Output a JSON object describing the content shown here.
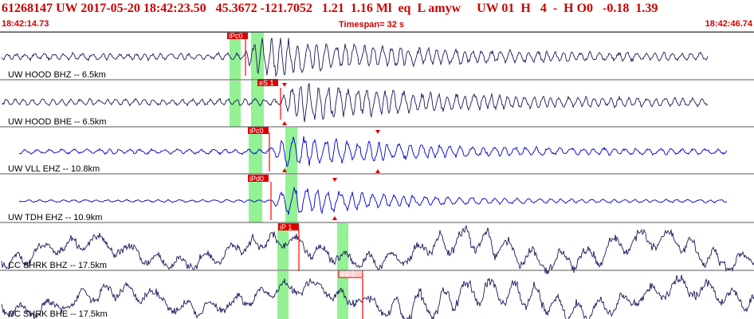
{
  "header": {
    "title": "61268147 UW 2017-05-20 18:42:23.50   45.3672 -121.7052   1.21  1.16 Ml  eq  L amyw     UW 01  H   4  -  H O0   -0.18  1.39",
    "start_time": "18:42:14.73",
    "timespan_label": "Timespan=  32 s",
    "end_time": "18:42:46.74"
  },
  "colors": {
    "header_text": "#cc0000",
    "trace_dark": "#1a1a5a",
    "trace_blue": "#0000cc",
    "pick_red": "#ff0000",
    "pick_marker": "#dd0000",
    "band_green": "#80f080"
  },
  "channels": [
    {
      "label": "UW HOOD BHZ -- 6.5km",
      "color": "dark",
      "seed": 11,
      "pick": {
        "text": "iPc0",
        "style": "filled"
      },
      "noise": 4,
      "onset": 305,
      "stop": 888,
      "burst_amp": 26,
      "decay": 170,
      "freq": 0.55
    },
    {
      "label": "UW HOOD BHE -- 6.5km",
      "color": "dark",
      "seed": 23,
      "pick": {
        "text": "eS 1",
        "style": "filled"
      },
      "noise": 4,
      "onset": 352,
      "stop": 888,
      "burst_amp": 26,
      "decay": 170,
      "freq": 0.55
    },
    {
      "label": "UW VLL EHZ -- 10.8km",
      "color": "blue",
      "seed": 37,
      "pick": {
        "text": "iPc0",
        "style": "filled"
      },
      "noise": 3,
      "onset": 338,
      "stop": 912,
      "burst_amp": 22,
      "decay": 150,
      "freq": 0.45
    },
    {
      "label": "UW TDH EHZ -- 10.9km",
      "color": "blue",
      "seed": 53,
      "pick": {
        "text": "iPd0",
        "style": "filled"
      },
      "noise": 1.5,
      "onset": 340,
      "stop": 912,
      "burst_amp": 22,
      "decay": 130,
      "freq": 0.45
    },
    {
      "label": "CC SHRK BHZ -- 17.5km",
      "color": "dark",
      "seed": 71,
      "pick": {
        "text": "iP 1",
        "style": "filled"
      },
      "noise": 10,
      "onset": 540,
      "stop": 946,
      "burst_amp": 10,
      "decay": 300,
      "freq": 0.2
    },
    {
      "label": "CC SHRK BHE -- 17.5km",
      "color": "dark",
      "seed": 89,
      "pick": {
        "text": "eS 2",
        "style": "outline"
      },
      "noise": 10,
      "onset": 480,
      "stop": 946,
      "burst_amp": 12,
      "decay": 300,
      "freq": 0.2
    }
  ]
}
